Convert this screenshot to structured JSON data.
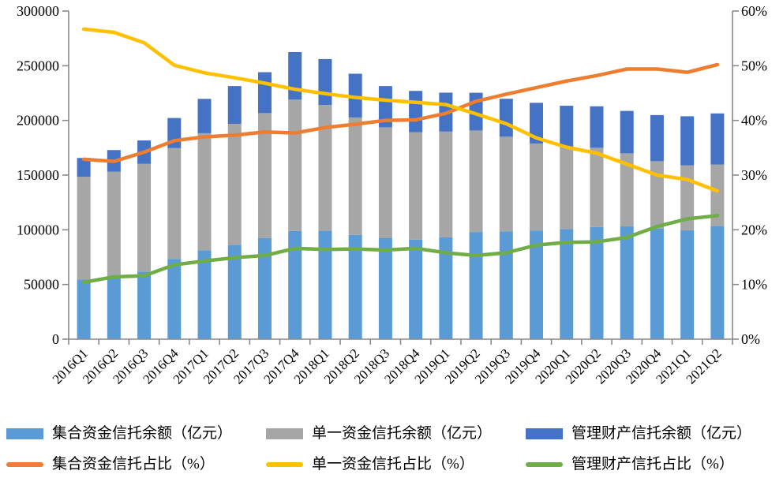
{
  "chart_data": {
    "type": "combo-stacked-bar-line",
    "title": "",
    "categories": [
      "2016Q1",
      "2016Q2",
      "2016Q3",
      "2016Q4",
      "2017Q1",
      "2017Q2",
      "2017Q3",
      "2017Q4",
      "2018Q1",
      "2018Q2",
      "2018Q3",
      "2018Q4",
      "2019Q1",
      "2019Q2",
      "2019Q3",
      "2019Q4",
      "2020Q1",
      "2020Q2",
      "2020Q3",
      "2020Q4",
      "2021Q1",
      "2021Q2"
    ],
    "bar_series": [
      {
        "name": "集合资金信托余额（亿元）",
        "axis": "left",
        "color": "#5B9BD5",
        "values": [
          54500,
          56200,
          61800,
          73400,
          81300,
          86300,
          92500,
          99000,
          99100,
          95400,
          92600,
          91000,
          93100,
          98000,
          98500,
          99400,
          100700,
          102600,
          103100,
          101200,
          99500,
          103600
        ]
      },
      {
        "name": "单一资金信托余额（亿元）",
        "axis": "left",
        "color": "#A6A6A6",
        "values": [
          94000,
          97000,
          98500,
          101300,
          107000,
          110600,
          114200,
          120000,
          115000,
          107300,
          101100,
          98300,
          96700,
          92800,
          86600,
          79500,
          74900,
          72400,
          66800,
          61500,
          59500,
          56000
        ]
      },
      {
        "name": "管理财产信托余额（亿元）",
        "axis": "left",
        "color": "#4472C4",
        "values": [
          17200,
          19700,
          21400,
          27500,
          31400,
          34500,
          37400,
          43500,
          42000,
          40000,
          37700,
          37700,
          35600,
          34500,
          34700,
          37200,
          37800,
          37900,
          38800,
          42200,
          44800,
          46800
        ]
      }
    ],
    "line_series": [
      {
        "name": "集合资金信托占比（%）",
        "axis": "right",
        "color": "#ED7D31",
        "values": [
          32.9,
          32.5,
          34.2,
          36.3,
          37.0,
          37.3,
          37.9,
          37.7,
          38.7,
          39.3,
          40.0,
          40.1,
          41.3,
          43.5,
          44.8,
          46.0,
          47.2,
          48.2,
          49.4,
          49.4,
          48.8,
          50.2
        ]
      },
      {
        "name": "单一资金信托占比（%）",
        "axis": "right",
        "color": "#FFC000",
        "values": [
          56.7,
          56.1,
          54.2,
          50.1,
          48.7,
          47.8,
          46.8,
          45.7,
          44.9,
          44.2,
          43.7,
          43.3,
          42.9,
          41.2,
          39.4,
          36.8,
          35.1,
          34.0,
          32.0,
          30.0,
          29.2,
          27.1
        ]
      },
      {
        "name": "管理财产信托占比（%）",
        "axis": "right",
        "color": "#70AD47",
        "values": [
          10.4,
          11.4,
          11.6,
          13.6,
          14.3,
          14.9,
          15.3,
          16.6,
          16.4,
          16.5,
          16.3,
          16.6,
          15.8,
          15.3,
          15.8,
          17.2,
          17.7,
          17.8,
          18.6,
          20.6,
          22.0,
          22.6
        ]
      }
    ],
    "y_left": {
      "min": 0,
      "max": 300000,
      "step": 50000,
      "tick_labels": [
        "0",
        "50000",
        "100000",
        "150000",
        "200000",
        "250000",
        "300000"
      ]
    },
    "y_right": {
      "min": 0,
      "max": 60,
      "step": 10,
      "tick_labels": [
        "0%",
        "10%",
        "20%",
        "30%",
        "40%",
        "50%",
        "60%"
      ]
    },
    "legend_position": "bottom",
    "grid": false,
    "style": {
      "axis_color": "#898989",
      "text_color": "#000000",
      "background": "#FFFFFF"
    }
  }
}
